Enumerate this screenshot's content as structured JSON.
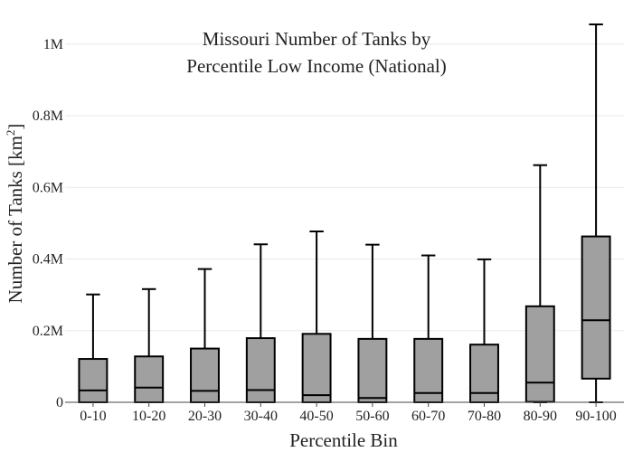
{
  "chart_data": {
    "type": "box",
    "title_lines": [
      "Missouri Number of Tanks by",
      "Percentile Low Income (National)"
    ],
    "xlabel": "Percentile Bin",
    "ylabel": "Number of Tanks  [km",
    "ylabel_sup": "2",
    "ylabel_close": "]",
    "ylim": [
      0,
      1060000
    ],
    "yticks": [
      {
        "value": 0,
        "label": "0"
      },
      {
        "value": 200000,
        "label": "0.2M"
      },
      {
        "value": 400000,
        "label": "0.4M"
      },
      {
        "value": 600000,
        "label": "0.6M"
      },
      {
        "value": 800000,
        "label": "0.8M"
      },
      {
        "value": 1000000,
        "label": "1M"
      }
    ],
    "grid": true,
    "box_color": "#a0a0a0",
    "categories": [
      "0-10",
      "10-20",
      "20-30",
      "30-40",
      "40-50",
      "50-60",
      "60-70",
      "70-80",
      "80-90",
      "90-100"
    ],
    "boxes": [
      {
        "min": 0,
        "q1": 0,
        "median": 33000,
        "q3": 121000,
        "max": 301000
      },
      {
        "min": 0,
        "q1": 0,
        "median": 41000,
        "q3": 128000,
        "max": 316000
      },
      {
        "min": 0,
        "q1": 0,
        "median": 32000,
        "q3": 150000,
        "max": 372000
      },
      {
        "min": 0,
        "q1": 0,
        "median": 34000,
        "q3": 179000,
        "max": 441000
      },
      {
        "min": 0,
        "q1": 0,
        "median": 20000,
        "q3": 191000,
        "max": 477000
      },
      {
        "min": 0,
        "q1": 0,
        "median": 12000,
        "q3": 177000,
        "max": 440000
      },
      {
        "min": 0,
        "q1": 0,
        "median": 26000,
        "q3": 177000,
        "max": 410000
      },
      {
        "min": 0,
        "q1": 0,
        "median": 26000,
        "q3": 161000,
        "max": 399000
      },
      {
        "min": 0,
        "q1": 1000,
        "median": 55000,
        "q3": 268000,
        "max": 662000
      },
      {
        "min": 0,
        "q1": 66000,
        "median": 229000,
        "q3": 463000,
        "max": 1055000
      }
    ]
  }
}
